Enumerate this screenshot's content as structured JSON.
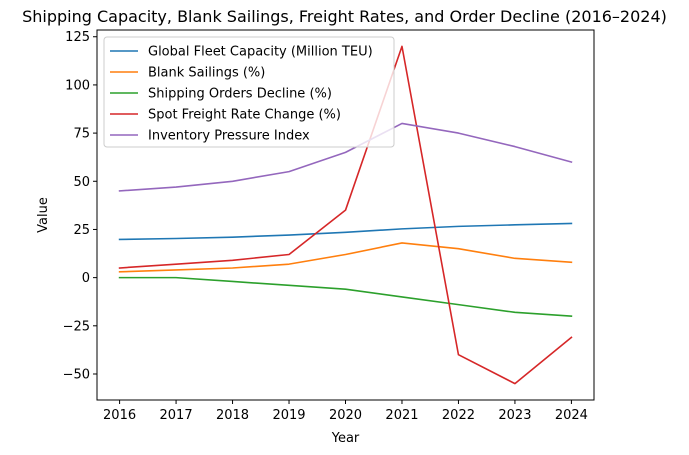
{
  "chart_data": {
    "type": "line",
    "title": "Shipping Capacity, Blank Sailings, Freight Rates, and Order Decline (2016–2024)",
    "xlabel": "Year",
    "ylabel": "Value",
    "x": [
      2016,
      2017,
      2018,
      2019,
      2020,
      2021,
      2022,
      2023,
      2024
    ],
    "xticks": [
      "2016",
      "2017",
      "2018",
      "2019",
      "2020",
      "2021",
      "2022",
      "2023",
      "2024"
    ],
    "yticks": [
      -50,
      -25,
      0,
      25,
      50,
      75,
      100,
      125
    ],
    "ytick_labels": [
      "−50",
      "−25",
      "0",
      "25",
      "50",
      "75",
      "100",
      "125"
    ],
    "xlim": [
      2015.6,
      2024.4
    ],
    "ylim": [
      -63.5,
      128.5
    ],
    "grid": false,
    "legend_position": "upper-left",
    "series": [
      {
        "name": "Global Fleet Capacity (Million TEU)",
        "color": "#1f77b4",
        "values": [
          19.8,
          20.3,
          21,
          22.1,
          23.5,
          25.3,
          26.6,
          27.4,
          28.1
        ]
      },
      {
        "name": "Blank Sailings (%)",
        "color": "#ff7f0e",
        "values": [
          3,
          4,
          5,
          7,
          12,
          18,
          15,
          10,
          8
        ]
      },
      {
        "name": "Shipping Orders Decline (%)",
        "color": "#2ca02c",
        "values": [
          0,
          0,
          -2,
          -4,
          -6,
          -10,
          -14,
          -18,
          -20
        ]
      },
      {
        "name": "Spot Freight Rate Change (%)",
        "color": "#d62728",
        "values": [
          5,
          7,
          9,
          12,
          35,
          120,
          -40,
          -55,
          -31
        ]
      },
      {
        "name": "Inventory Pressure Index",
        "color": "#9467bd",
        "values": [
          45,
          47,
          50,
          55,
          65,
          80,
          75,
          68,
          60
        ]
      }
    ]
  }
}
